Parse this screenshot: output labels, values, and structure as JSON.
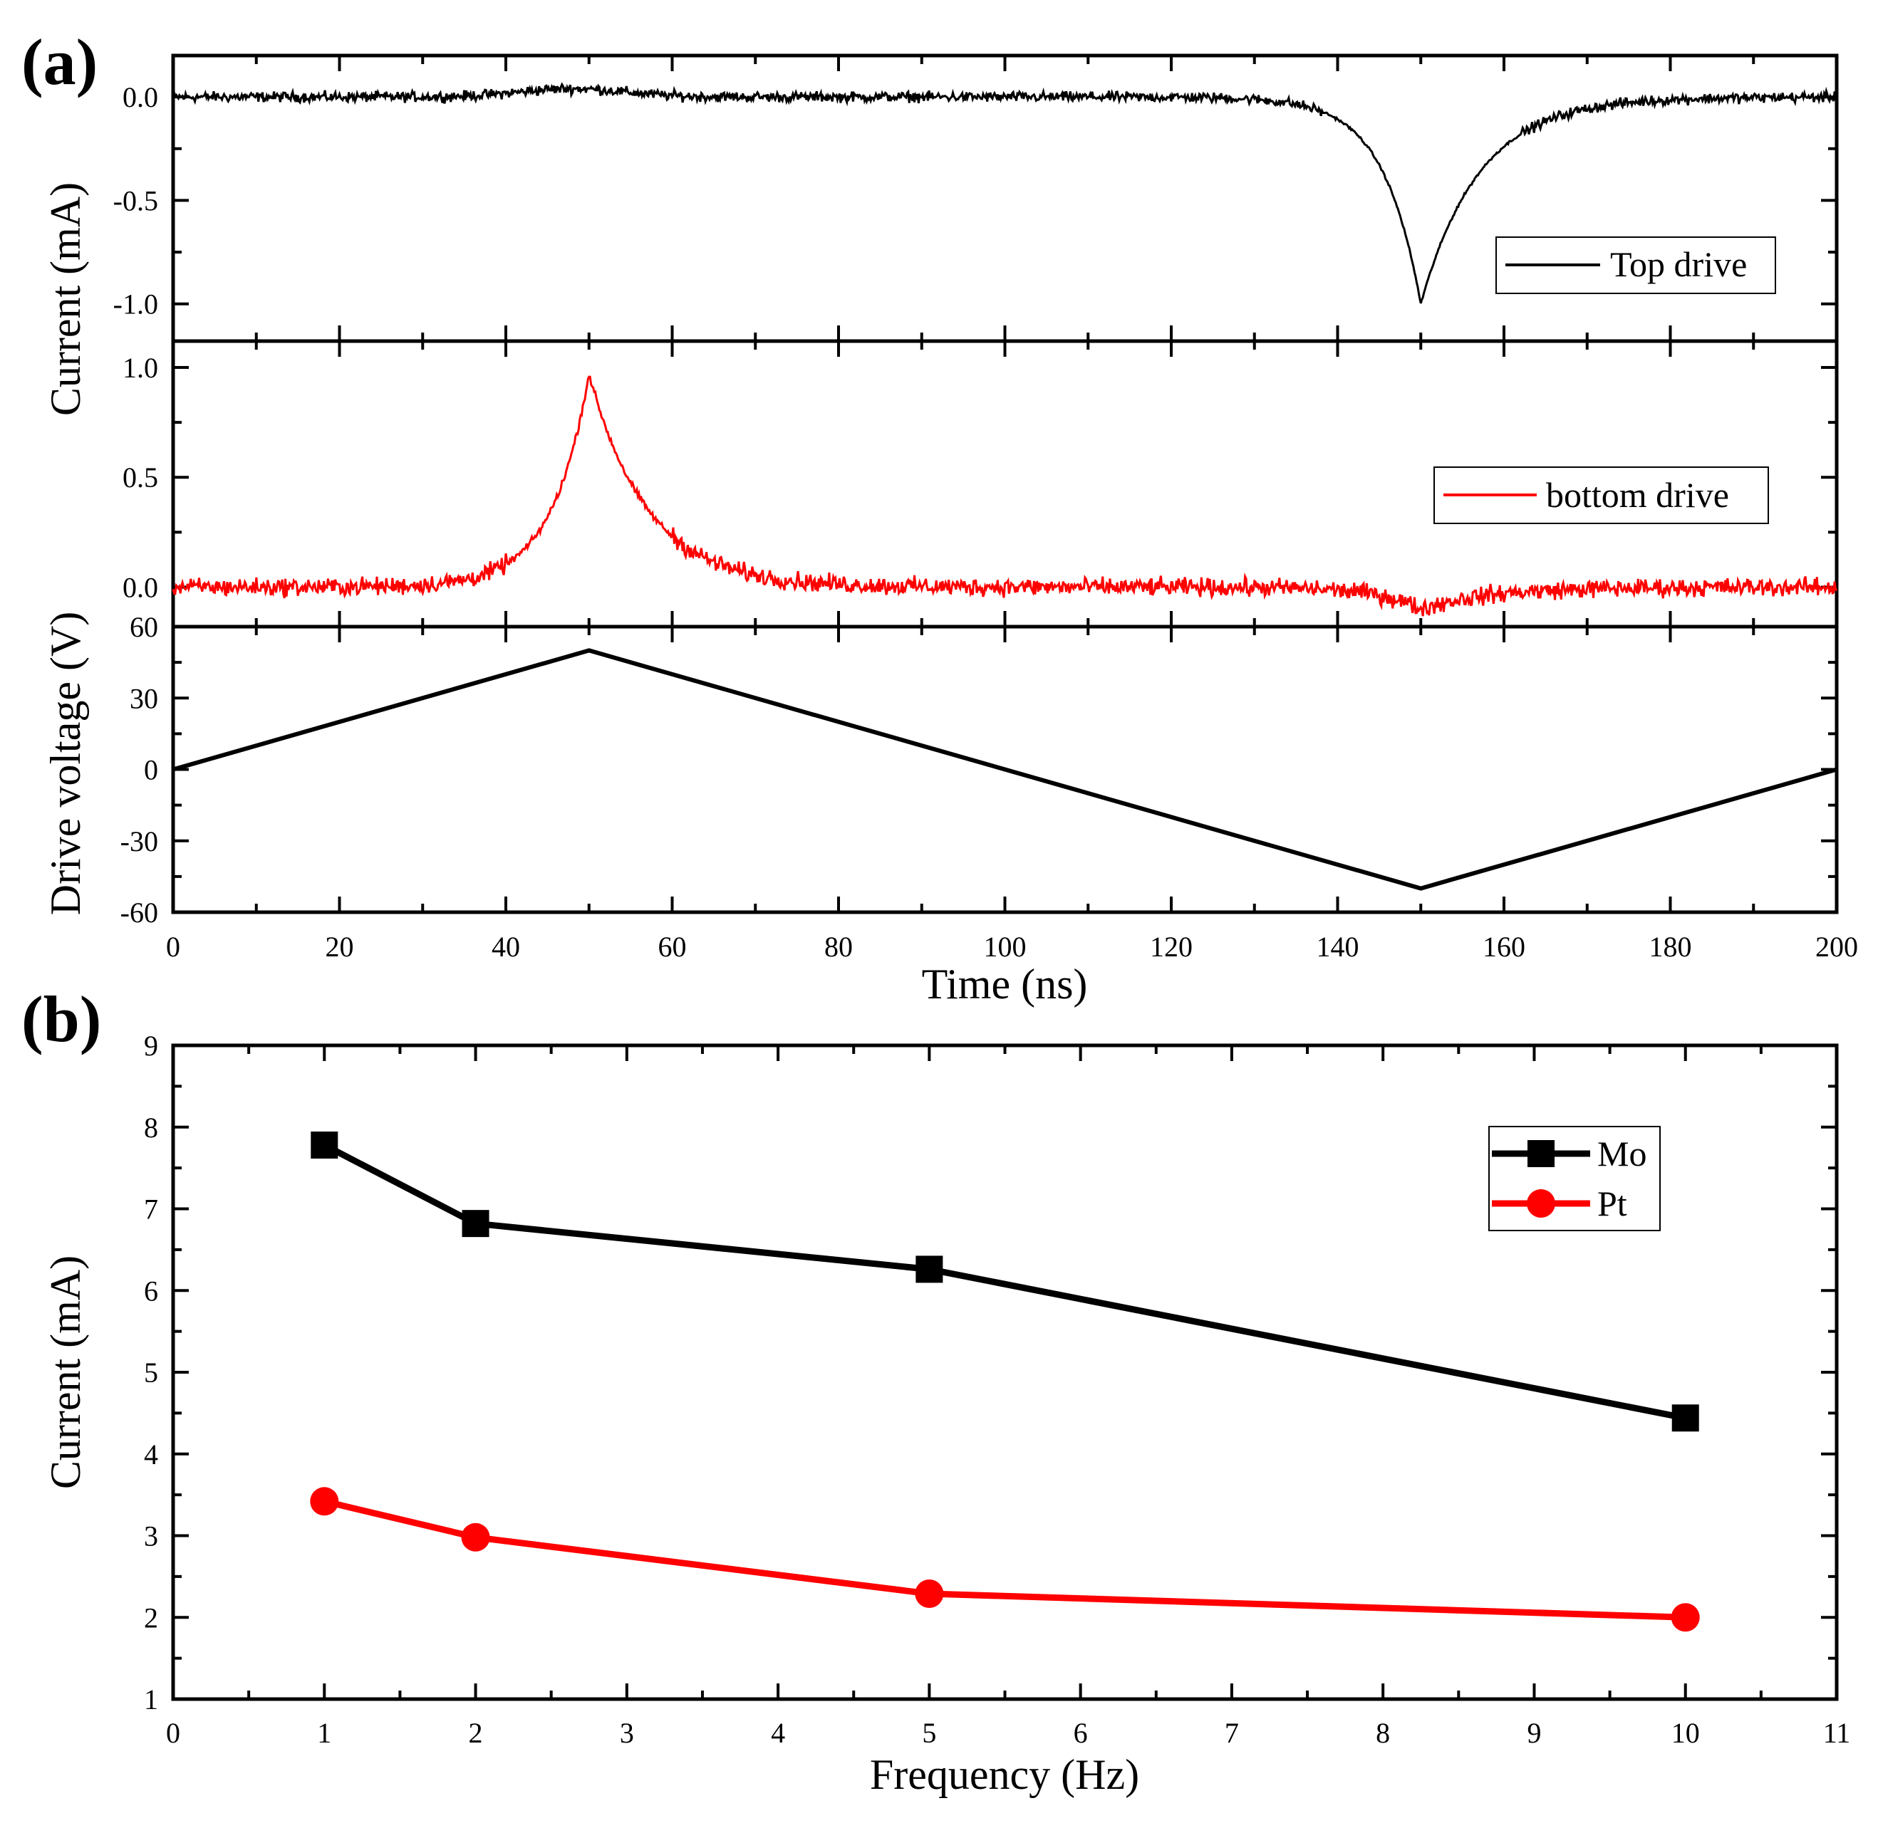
{
  "chart_data": [
    {
      "panel": "(a)",
      "type": "line",
      "subplots": [
        {
          "id": "top",
          "series": [
            {
              "name": "Top drive",
              "color": "#000000",
              "shape": "dip",
              "baseline": 0.0,
              "peak_x": 150,
              "peak_y": -1.0,
              "noise_amplitude": 0.03
            }
          ],
          "yticks": [
            0.0,
            -0.5,
            -1.0
          ],
          "ytick_labels": [
            "0.0",
            "-0.5",
            "-1.0"
          ],
          "ylim": [
            -1.18,
            0.2
          ],
          "legend": "right"
        },
        {
          "id": "middle",
          "series": [
            {
              "name": "bottom drive",
              "color": "#ff0000",
              "shape": "peak_with_small_dip",
              "baseline": 0.0,
              "peak_x": 50,
              "peak_y": 0.97,
              "dip_x": 150,
              "dip_y": -0.1,
              "noise_amplitude": 0.05
            }
          ],
          "yticks": [
            0.0,
            0.5,
            1.0
          ],
          "ytick_labels": [
            "0.0",
            "0.5",
            "1.0"
          ],
          "ylim": [
            -0.18,
            1.12
          ],
          "legend": "right"
        },
        {
          "id": "bottom",
          "series": [
            {
              "name": "Drive voltage",
              "color": "#000000",
              "x": [
                0,
                50,
                150,
                200
              ],
              "y": [
                0,
                50,
                -50,
                0
              ]
            }
          ],
          "yticks": [
            60,
            30,
            0,
            -30,
            -60
          ],
          "ytick_labels": [
            "60",
            "30",
            "0",
            "-30",
            "-60"
          ],
          "ylim": [
            -60,
            60
          ]
        }
      ],
      "xlim": [
        0,
        200
      ],
      "xticks": [
        0,
        20,
        40,
        60,
        80,
        100,
        120,
        140,
        160,
        180,
        200
      ],
      "xtick_labels": [
        "0",
        "20",
        "40",
        "60",
        "80",
        "100",
        "120",
        "140",
        "160",
        "180",
        "200"
      ],
      "xlabel": "Time (ns)",
      "ylabel_current": "Current (mA)",
      "ylabel_voltage": "Drive voltage (V)"
    },
    {
      "panel": "(b)",
      "type": "line",
      "x": [
        1,
        2,
        5,
        10
      ],
      "series": [
        {
          "name": "Mo",
          "color": "#000000",
          "marker": "square",
          "values": [
            7.78,
            6.82,
            6.26,
            4.44
          ]
        },
        {
          "name": "Pt",
          "color": "#ff0000",
          "marker": "circle",
          "values": [
            3.42,
            2.98,
            2.29,
            2.0
          ]
        }
      ],
      "xlim": [
        0,
        11
      ],
      "ylim": [
        1,
        9
      ],
      "xticks": [
        0,
        1,
        2,
        3,
        4,
        5,
        6,
        7,
        8,
        9,
        10,
        11
      ],
      "xtick_labels": [
        "0",
        "1",
        "2",
        "3",
        "4",
        "5",
        "6",
        "7",
        "8",
        "9",
        "10",
        "11"
      ],
      "yticks": [
        1,
        2,
        3,
        4,
        5,
        6,
        7,
        8,
        9
      ],
      "ytick_labels": [
        "1",
        "2",
        "3",
        "4",
        "5",
        "6",
        "7",
        "8",
        "9"
      ],
      "xlabel": "Frequency (Hz)",
      "ylabel": "Current (mA)",
      "legend": "top-right"
    }
  ]
}
